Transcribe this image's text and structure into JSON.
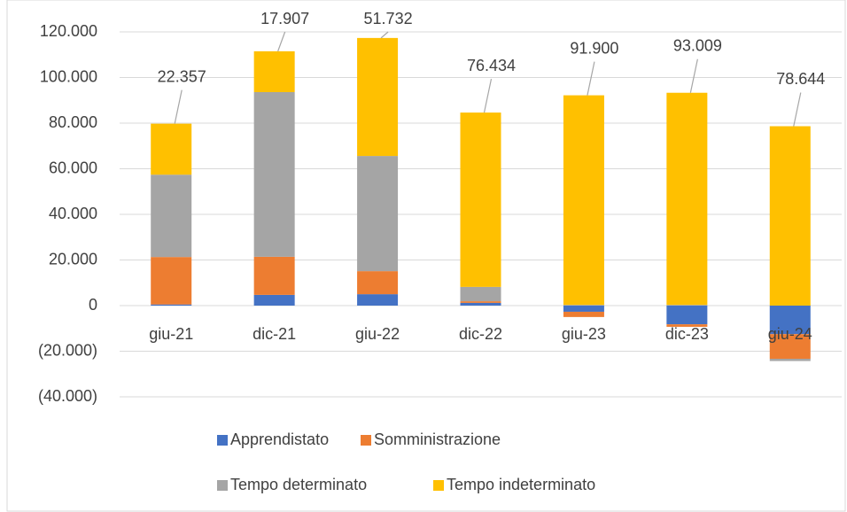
{
  "chart_data": {
    "type": "stacked_bar",
    "categories": [
      "giu-21",
      "dic-21",
      "giu-22",
      "dic-22",
      "giu-23",
      "dic-23",
      "giu-24"
    ],
    "series": [
      {
        "name": "Apprendistato",
        "color": "#4472c4",
        "values": [
          500,
          4700,
          5000,
          1200,
          -2700,
          -8200,
          -12500
        ]
      },
      {
        "name": "Somministrazione",
        "color": "#ed7d31",
        "values": [
          20800,
          16700,
          10100,
          700,
          -2300,
          -1100,
          -10800
        ]
      },
      {
        "name": "Tempo determinato",
        "color": "#a5a5a5",
        "values": [
          36100,
          72200,
          50500,
          6300,
          300,
          300,
          -1000
        ]
      },
      {
        "name": "Tempo indeterminato",
        "color": "#ffc000",
        "values": [
          22357,
          17907,
          51732,
          76434,
          91900,
          93009,
          78644
        ],
        "value_labels": [
          "22.357",
          "17.907",
          "51.732",
          "76.434",
          "91.900",
          "93.009",
          "78.644"
        ]
      }
    ],
    "ylim": [
      -40000,
      120000
    ],
    "yticks": [
      {
        "value": -40000,
        "label": "(40.000)"
      },
      {
        "value": -20000,
        "label": "(20.000)"
      },
      0,
      {
        "value": 20000,
        "label": "20.000"
      },
      {
        "value": 40000,
        "label": "40.000"
      },
      {
        "value": 60000,
        "label": "60.000"
      },
      {
        "value": 80000,
        "label": "80.000"
      },
      {
        "value": 100000,
        "label": "100.000"
      },
      {
        "value": 120000,
        "label": "120.000"
      }
    ],
    "grid": true,
    "legend": "bottom"
  }
}
